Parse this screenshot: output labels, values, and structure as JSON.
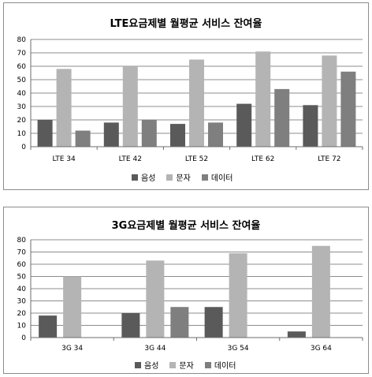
{
  "colors": {
    "음성": "#5a5a5a",
    "문자": "#b4b4b4",
    "데이터": "#7f7f7f"
  },
  "chart_data": [
    {
      "type": "bar",
      "title": "LTE요금제별 월평균 서비스 잔여율",
      "categories": [
        "LTE 34",
        "LTE 42",
        "LTE 52",
        "LTE 62",
        "LTE 72"
      ],
      "series": [
        {
          "name": "음성",
          "values": [
            20,
            18,
            17,
            32,
            31
          ]
        },
        {
          "name": "문자",
          "values": [
            58,
            60,
            65,
            71,
            68
          ]
        },
        {
          "name": "데이터",
          "values": [
            12,
            20,
            18,
            43,
            56
          ]
        }
      ],
      "ylim": [
        0,
        80
      ],
      "yticks": [
        0,
        10,
        20,
        30,
        40,
        50,
        60,
        70,
        80
      ],
      "grid": true,
      "legend": "bottom"
    },
    {
      "type": "bar",
      "title": "3G요금제별 월평균 서비스 잔여율",
      "categories": [
        "3G 34",
        "3G 44",
        "3G 54",
        "3G 64"
      ],
      "series": [
        {
          "name": "음성",
          "values": [
            18,
            20,
            25,
            5
          ]
        },
        {
          "name": "문자",
          "values": [
            50,
            63,
            69,
            75
          ]
        },
        {
          "name": "데이터",
          "values": [
            0,
            25,
            0,
            0
          ]
        }
      ],
      "ylim": [
        0,
        80
      ],
      "yticks": [
        0,
        10,
        20,
        30,
        40,
        50,
        60,
        70,
        80
      ],
      "grid": true,
      "legend": "bottom"
    }
  ]
}
